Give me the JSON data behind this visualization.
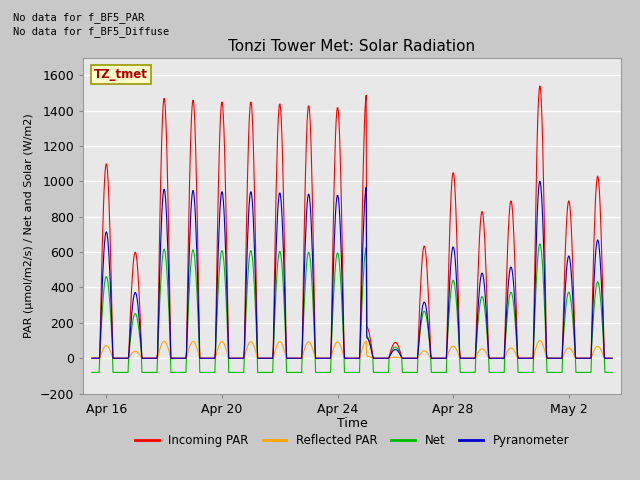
{
  "title": "Tonzi Tower Met: Solar Radiation",
  "ylabel": "PAR (μmol/m2/s) / Net and Solar (W/m2)",
  "xlabel": "Time",
  "no_data_text": [
    "No data for f_BF5_PAR",
    "No data for f_BF5_Diffuse"
  ],
  "legend_label": "TZ_tmet",
  "ylim": [
    -200,
    1700
  ],
  "yticks": [
    -200,
    0,
    200,
    400,
    600,
    800,
    1000,
    1200,
    1400,
    1600
  ],
  "fig_bg_color": "#c8c8c8",
  "plot_bg_color": "#e8e8e8",
  "colors": {
    "incoming_par": "#ff0000",
    "reflected_par": "#ffa500",
    "net": "#00bb00",
    "pyranometer": "#0000cc"
  },
  "legend_entries": [
    "Incoming PAR",
    "Reflected PAR",
    "Net",
    "Pyranometer"
  ],
  "xtick_labels": [
    "Apr 16",
    "Apr 20",
    "Apr 24",
    "Apr 28",
    "May 2"
  ],
  "xtick_positions": [
    0.5,
    4.5,
    8.5,
    12.5,
    16.5
  ]
}
